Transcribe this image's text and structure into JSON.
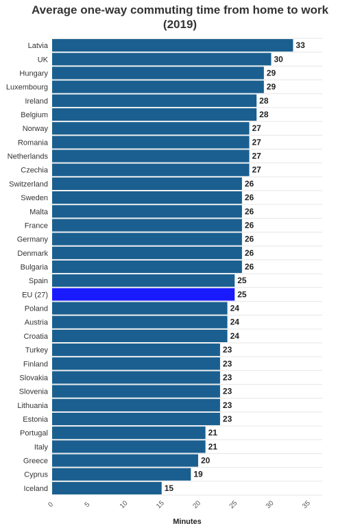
{
  "chart_data": {
    "type": "bar",
    "orientation": "horizontal",
    "title_line1": "Average one-way commuting time from home to work",
    "title_line2": "(2019)",
    "xlabel": "Minutes",
    "ylabel": "",
    "xlim": [
      0,
      37
    ],
    "xticks": [
      0,
      5,
      10,
      15,
      20,
      25,
      30,
      35
    ],
    "grid": true,
    "bar_color": "#1a5f8f",
    "highlight_color": "#1a1aff",
    "highlight_category": "EU (27)",
    "categories": [
      "Latvia",
      "UK",
      "Hungary",
      "Luxembourg",
      "Ireland",
      "Belgium",
      "Norway",
      "Romania",
      "Netherlands",
      "Czechia",
      "Switzerland",
      "Sweden",
      "Malta",
      "France",
      "Germany",
      "Denmark",
      "Bulgaria",
      "Spain",
      "EU (27)",
      "Poland",
      "Austria",
      "Croatia",
      "Turkey",
      "Finland",
      "Slovakia",
      "Slovenia",
      "Lithuania",
      "Estonia",
      "Portugal",
      "Italy",
      "Greece",
      "Cyprus",
      "Iceland"
    ],
    "values": [
      33,
      30,
      29,
      29,
      28,
      28,
      27,
      27,
      27,
      27,
      26,
      26,
      26,
      26,
      26,
      26,
      26,
      25,
      25,
      24,
      24,
      24,
      23,
      23,
      23,
      23,
      23,
      23,
      21,
      21,
      20,
      19,
      15
    ]
  }
}
